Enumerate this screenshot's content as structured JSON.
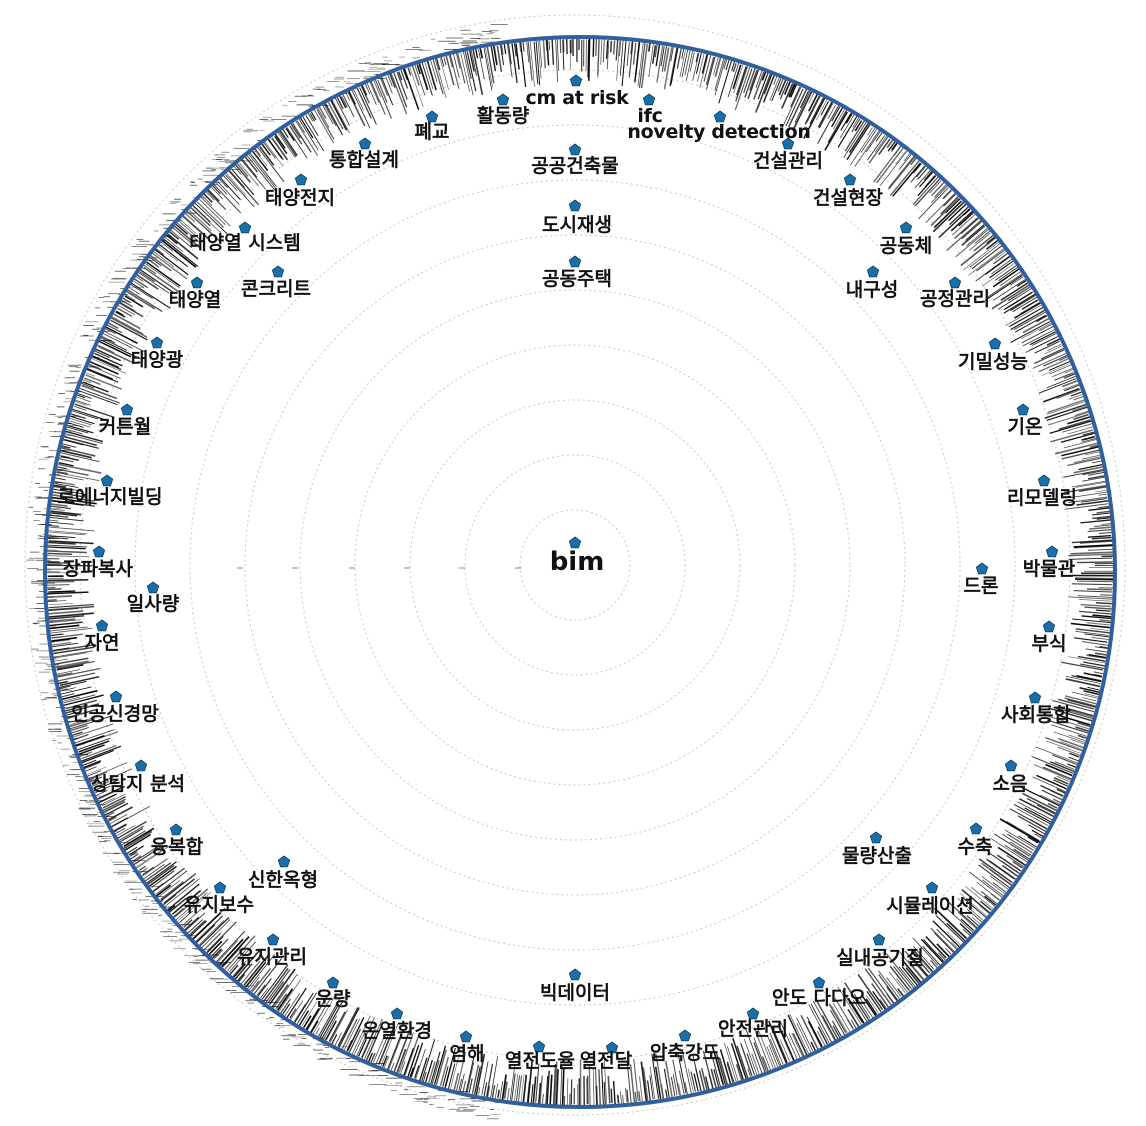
{
  "colors": {
    "node": "#1a6fa8",
    "node_stroke": "#0d3f66",
    "outer_ring": "#2f5f9e",
    "ring_guides": "#c8c8c8",
    "edges": "#000000",
    "text": "#111111"
  },
  "center": {
    "label": "bim"
  },
  "inner_nodes": [
    {
      "id": "n_gonggeonchukmul",
      "label": "공공건축물"
    },
    {
      "id": "n_dosijaesaeng",
      "label": "도시재생"
    },
    {
      "id": "n_gongdongjutaek",
      "label": "공동주택"
    },
    {
      "id": "n_bigdata",
      "label": "빅데이터"
    },
    {
      "id": "n_drone",
      "label": "드론"
    },
    {
      "id": "n_ilsaryang",
      "label": "일사량"
    },
    {
      "id": "n_concrete",
      "label": "콘크리트"
    },
    {
      "id": "n_naeguseong",
      "label": "내구성"
    },
    {
      "id": "n_mullyangsanchul",
      "label": "물량산출"
    },
    {
      "id": "n_sinhanokhyeong",
      "label": "신한옥형"
    }
  ],
  "outer_nodes": [
    {
      "id": "o_cmatrisk",
      "label": "cm at risk",
      "latin": true
    },
    {
      "id": "o_ifc",
      "label": "ifc",
      "latin": true
    },
    {
      "id": "o_novelty",
      "label": "novelty detection",
      "latin": true
    },
    {
      "id": "o_geonseolgwalli",
      "label": "건설관리"
    },
    {
      "id": "o_geonseolhyeonjang",
      "label": "건설현장"
    },
    {
      "id": "o_gongdongche",
      "label": "공동체"
    },
    {
      "id": "o_gongjeonggwalli",
      "label": "공정관리"
    },
    {
      "id": "o_gimilseongneung",
      "label": "기밀성능"
    },
    {
      "id": "o_gion",
      "label": "기온"
    },
    {
      "id": "o_remodeling",
      "label": "리모델링"
    },
    {
      "id": "o_bakmulgwan",
      "label": "박물관"
    },
    {
      "id": "o_busik",
      "label": "부식"
    },
    {
      "id": "o_sahoetonghap",
      "label": "사회통합"
    },
    {
      "id": "o_soeum",
      "label": "소음"
    },
    {
      "id": "o_suchuk",
      "label": "수축"
    },
    {
      "id": "o_simulation",
      "label": "시뮬레이션"
    },
    {
      "id": "o_silnaegonggijil",
      "label": "실내공기질"
    },
    {
      "id": "o_ando",
      "label": "안도 다다오"
    },
    {
      "id": "o_anjeongwalli",
      "label": "안전관리"
    },
    {
      "id": "o_apchukgangdo",
      "label": "압축강도"
    },
    {
      "id": "o_yeoljeondal",
      "label": "열전달"
    },
    {
      "id": "o_yeoljeondoyul",
      "label": "열전도율"
    },
    {
      "id": "o_yeomhae",
      "label": "염해"
    },
    {
      "id": "o_onyeolhwangyeong",
      "label": "온열환경"
    },
    {
      "id": "o_unryang",
      "label": "운량"
    },
    {
      "id": "o_yujigwalli",
      "label": "유지관리"
    },
    {
      "id": "o_yujibosu",
      "label": "유지보수"
    },
    {
      "id": "o_yungbokhap",
      "label": "융복합"
    },
    {
      "id": "o_sangtamji",
      "label": "상탐지 분석"
    },
    {
      "id": "o_ingongsingyeongmang",
      "label": "인공신경망"
    },
    {
      "id": "o_jayeon",
      "label": "자연"
    },
    {
      "id": "o_jangpaboksa",
      "label": "장파복사"
    },
    {
      "id": "o_zeroenergy",
      "label": "로에너지빌딩"
    },
    {
      "id": "o_curtainwall",
      "label": "커튼월"
    },
    {
      "id": "o_taeyanggwang",
      "label": "태양광"
    },
    {
      "id": "o_taeyangyeol",
      "label": "태양열"
    },
    {
      "id": "o_taeyangyeolsystem",
      "label": "태양열 시스템"
    },
    {
      "id": "o_taeyangjeonji",
      "label": "태양전지"
    },
    {
      "id": "o_tonghapseolgye",
      "label": "통합설계"
    },
    {
      "id": "o_pegyo",
      "label": "폐교"
    },
    {
      "id": "o_hwaldongnyang",
      "label": "활동량"
    }
  ]
}
